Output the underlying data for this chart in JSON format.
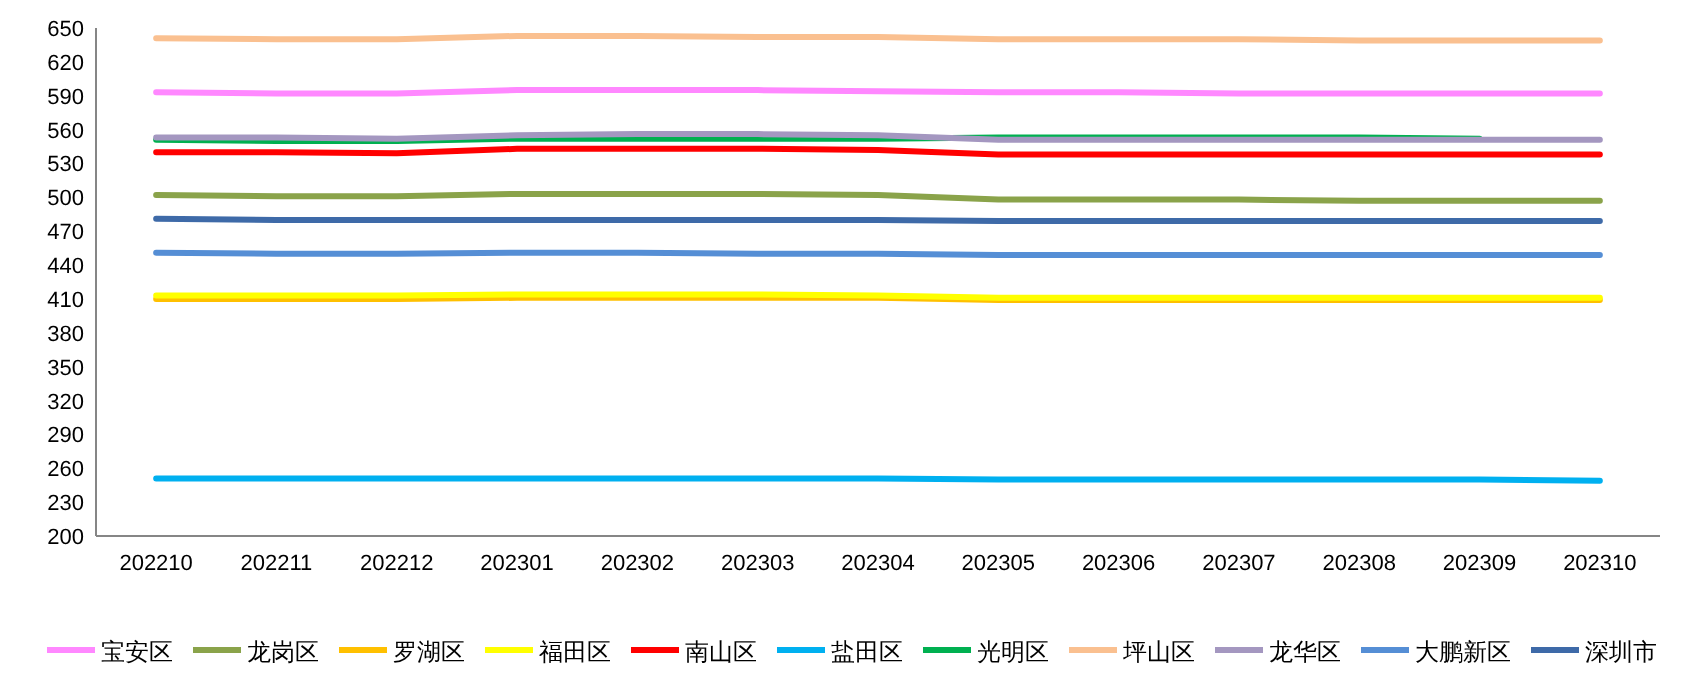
{
  "chart_data": {
    "type": "line",
    "categories": [
      "202210",
      "202211",
      "202212",
      "202301",
      "202302",
      "202303",
      "202304",
      "202305",
      "202306",
      "202307",
      "202308",
      "202309",
      "202310"
    ],
    "series": [
      {
        "name": "宝安区",
        "color": "#ff88ff",
        "values": [
          593,
          592,
          592,
          595,
          595,
          595,
          594,
          593,
          593,
          592,
          592,
          592,
          592
        ]
      },
      {
        "name": "龙岗区",
        "color": "#8aa34a",
        "values": [
          502,
          501,
          501,
          503,
          503,
          503,
          502,
          498,
          498,
          498,
          497,
          497,
          497
        ]
      },
      {
        "name": "罗湖区",
        "color": "#ffc000",
        "values": [
          410,
          410,
          410,
          411,
          411,
          411,
          411,
          409,
          409,
          409,
          409,
          409,
          409
        ]
      },
      {
        "name": "福田区",
        "color": "#ffff00",
        "values": [
          413,
          413,
          413,
          414,
          414,
          414,
          413,
          411,
          411,
          411,
          411,
          411,
          411
        ]
      },
      {
        "name": "南山区",
        "color": "#ff0000",
        "values": [
          540,
          540,
          539,
          543,
          543,
          543,
          542,
          538,
          538,
          538,
          538,
          538,
          538
        ]
      },
      {
        "name": "盐田区",
        "color": "#00b0f0",
        "values": [
          251,
          251,
          251,
          251,
          251,
          251,
          251,
          250,
          250,
          250,
          250,
          250,
          249
        ]
      },
      {
        "name": "光明区",
        "color": "#00b050",
        "values": [
          551,
          550,
          550,
          552,
          552,
          552,
          552,
          553,
          553,
          553,
          553,
          552,
          null
        ]
      },
      {
        "name": "坪山区",
        "color": "#fac090",
        "values": [
          641,
          640,
          640,
          643,
          643,
          642,
          642,
          640,
          640,
          640,
          639,
          639,
          639
        ]
      },
      {
        "name": "龙华区",
        "color": "#a497c0",
        "values": [
          553,
          553,
          552,
          555,
          556,
          556,
          555,
          551,
          551,
          551,
          551,
          551,
          551
        ]
      },
      {
        "name": "大鹏新区",
        "color": "#558ed5",
        "values": [
          451,
          450,
          450,
          451,
          451,
          450,
          450,
          449,
          449,
          449,
          449,
          449,
          449
        ]
      },
      {
        "name": "深圳市",
        "color": "#3e6aa8",
        "values": [
          481,
          480,
          480,
          480,
          480,
          480,
          480,
          479,
          479,
          479,
          479,
          479,
          479
        ]
      }
    ],
    "ylim": [
      200,
      650
    ],
    "yticks": [
      200,
      230,
      260,
      290,
      320,
      350,
      380,
      410,
      440,
      470,
      500,
      530,
      560,
      590,
      620,
      650
    ],
    "grid": false,
    "legend": "bottom",
    "marker": "none",
    "line_style": "solid"
  }
}
